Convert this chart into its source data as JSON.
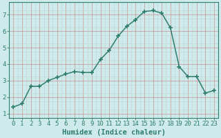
{
  "x": [
    0,
    1,
    2,
    3,
    4,
    5,
    6,
    7,
    8,
    9,
    10,
    11,
    12,
    13,
    14,
    15,
    16,
    17,
    18,
    19,
    20,
    21,
    22,
    23
  ],
  "y": [
    1.4,
    1.6,
    2.65,
    2.65,
    3.0,
    3.2,
    3.4,
    3.55,
    3.5,
    3.5,
    4.3,
    4.85,
    5.7,
    6.3,
    6.7,
    7.2,
    7.25,
    7.1,
    6.2,
    3.85,
    3.25,
    3.25,
    2.25,
    2.4
  ],
  "line_color": "#2e7d6d",
  "marker": "+",
  "marker_size": 5,
  "marker_lw": 1.2,
  "bg_color": "#ceeaea",
  "grid_color": "#b8d4d4",
  "grid_color_minor": "#d4e8e8",
  "xlabel": "Humidex (Indice chaleur)",
  "xlim": [
    -0.5,
    23.5
  ],
  "ylim": [
    0.75,
    7.75
  ],
  "xtick_labels": [
    "0",
    "1",
    "2",
    "3",
    "4",
    "5",
    "6",
    "7",
    "8",
    "9",
    "10",
    "11",
    "12",
    "13",
    "14",
    "15",
    "16",
    "17",
    "18",
    "19",
    "20",
    "21",
    "22",
    "23"
  ],
  "yticks": [
    1,
    2,
    3,
    4,
    5,
    6,
    7
  ],
  "tick_color": "#2e7d6d",
  "label_fontsize": 7.5,
  "tick_fontsize": 6.5,
  "line_width": 1.1
}
